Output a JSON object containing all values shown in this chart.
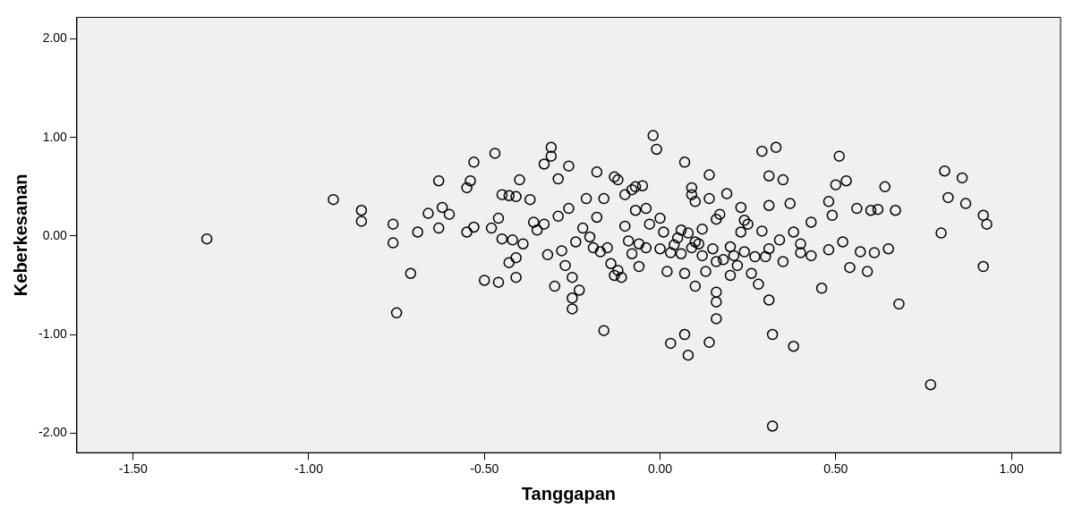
{
  "chart_data": {
    "type": "scatter",
    "xlabel": "Tanggapan",
    "ylabel": "Keberkesanan",
    "marker": "circle",
    "xlim": [
      -1.66,
      1.14
    ],
    "ylim": [
      -2.2,
      2.22
    ],
    "xticks": [
      {
        "value": -1.5,
        "label": "-1.50"
      },
      {
        "value": -1,
        "label": "-1.00"
      },
      {
        "value": -0.5,
        "label": "-0.50"
      },
      {
        "value": 0,
        "label": "0.00"
      },
      {
        "value": 0.5,
        "label": "0.50"
      },
      {
        "value": 1,
        "label": "1.00"
      }
    ],
    "yticks": [
      {
        "value": -2,
        "label": "-2.00"
      },
      {
        "value": -1,
        "label": "-1.00"
      },
      {
        "value": 0,
        "label": "0.00"
      },
      {
        "value": 1,
        "label": "1.00"
      },
      {
        "value": 2,
        "label": "2.00"
      }
    ],
    "series": [
      {
        "color": "#000000",
        "x": [
          -1.29,
          -0.93,
          -0.85,
          -0.85,
          -0.76,
          -0.76,
          -0.75,
          -0.71,
          -0.69,
          -0.66,
          -0.63,
          -0.63,
          -0.62,
          -0.6,
          -0.55,
          -0.54,
          -0.53,
          -0.55,
          -0.53,
          -0.5,
          -0.47,
          -0.48,
          -0.46,
          -0.45,
          -0.46,
          -0.45,
          -0.43,
          -0.43,
          -0.42,
          -0.41,
          -0.41,
          -0.41,
          -0.4,
          -0.39,
          -0.37,
          -0.36,
          -0.35,
          -0.33,
          -0.33,
          -0.31,
          -0.31,
          -0.32,
          -0.3,
          -0.29,
          -0.29,
          -0.28,
          -0.27,
          -0.26,
          -0.26,
          -0.25,
          -0.25,
          -0.25,
          -0.24,
          -0.23,
          -0.22,
          -0.21,
          -0.2,
          -0.19,
          -0.18,
          -0.18,
          -0.17,
          -0.16,
          -0.16,
          -0.15,
          -0.14,
          -0.13,
          -0.13,
          -0.12,
          -0.12,
          -0.11,
          -0.1,
          -0.1,
          -0.09,
          -0.08,
          -0.08,
          -0.07,
          -0.07,
          -0.06,
          -0.06,
          -0.05,
          -0.04,
          -0.04,
          -0.03,
          -0.02,
          -0.01,
          0,
          0,
          0.01,
          0.02,
          0.03,
          0.03,
          0.04,
          0.05,
          0.06,
          0.06,
          0.07,
          0.07,
          0.07,
          0.08,
          0.08,
          0.09,
          0.09,
          0.09,
          0.1,
          0.1,
          0.1,
          0.11,
          0.12,
          0.12,
          0.13,
          0.14,
          0.14,
          0.14,
          0.15,
          0.16,
          0.16,
          0.16,
          0.16,
          0.16,
          0.17,
          0.18,
          0.19,
          0.2,
          0.2,
          0.21,
          0.22,
          0.23,
          0.23,
          0.24,
          0.24,
          0.25,
          0.26,
          0.27,
          0.28,
          0.29,
          0.29,
          0.3,
          0.31,
          0.31,
          0.31,
          0.31,
          0.32,
          0.32,
          0.33,
          0.34,
          0.35,
          0.35,
          0.37,
          0.38,
          0.38,
          0.4,
          0.4,
          0.43,
          0.43,
          0.46,
          0.48,
          0.48,
          0.49,
          0.5,
          0.51,
          0.52,
          0.53,
          0.54,
          0.56,
          0.57,
          0.59,
          0.6,
          0.61,
          0.62,
          0.64,
          0.65,
          0.67,
          0.68,
          0.77,
          0.8,
          0.81,
          0.82,
          0.86,
          0.87,
          0.92,
          0.92,
          0.93
        ],
        "values": [
          -0.03,
          0.37,
          0.26,
          0.15,
          0.12,
          -0.07,
          -0.78,
          -0.38,
          0.04,
          0.23,
          0.56,
          0.08,
          0.29,
          0.22,
          0.49,
          0.56,
          0.75,
          0.04,
          0.09,
          -0.45,
          0.84,
          0.08,
          -0.47,
          0.42,
          0.18,
          -0.03,
          0.41,
          -0.27,
          -0.04,
          0.4,
          -0.22,
          -0.42,
          0.57,
          -0.08,
          0.37,
          0.14,
          0.06,
          0.12,
          0.73,
          0.9,
          0.81,
          -0.19,
          -0.51,
          0.2,
          0.58,
          -0.15,
          -0.3,
          0.71,
          0.28,
          -0.42,
          -0.63,
          -0.74,
          -0.06,
          -0.55,
          0.08,
          0.38,
          -0.01,
          -0.12,
          0.65,
          0.19,
          -0.16,
          0.38,
          -0.96,
          -0.12,
          -0.28,
          -0.4,
          0.6,
          -0.35,
          0.57,
          -0.42,
          0.1,
          0.42,
          -0.05,
          -0.18,
          0.47,
          0.5,
          0.26,
          -0.08,
          -0.31,
          0.51,
          0.28,
          -0.12,
          0.12,
          1.02,
          0.88,
          0.18,
          -0.13,
          0.04,
          -0.36,
          -0.17,
          -1.09,
          -0.09,
          -0.02,
          0.06,
          -0.18,
          0.75,
          -1,
          -0.38,
          -1.21,
          0.03,
          -0.12,
          0.42,
          0.49,
          -0.06,
          0.35,
          -0.51,
          -0.08,
          0.07,
          -0.2,
          -0.36,
          0.62,
          0.38,
          -1.08,
          -0.13,
          -0.26,
          -0.57,
          -0.67,
          -0.84,
          0.17,
          0.22,
          -0.24,
          0.43,
          -0.11,
          -0.4,
          -0.2,
          -0.3,
          0.04,
          0.29,
          0.16,
          -0.16,
          0.12,
          -0.38,
          -0.21,
          -0.49,
          0.86,
          0.05,
          -0.21,
          0.31,
          -0.13,
          0.61,
          -0.65,
          -1,
          -1.93,
          0.9,
          -0.04,
          0.57,
          -0.26,
          0.33,
          -1.12,
          0.04,
          -0.08,
          -0.17,
          0.14,
          -0.2,
          -0.53,
          -0.14,
          0.35,
          0.21,
          0.52,
          0.81,
          -0.06,
          0.56,
          -0.32,
          0.28,
          -0.16,
          -0.36,
          0.26,
          -0.17,
          0.27,
          0.5,
          -0.13,
          0.26,
          -0.69,
          -1.51,
          0.03,
          0.66,
          0.39,
          0.59,
          0.33,
          0.21,
          -0.31,
          0.12
        ]
      }
    ]
  }
}
